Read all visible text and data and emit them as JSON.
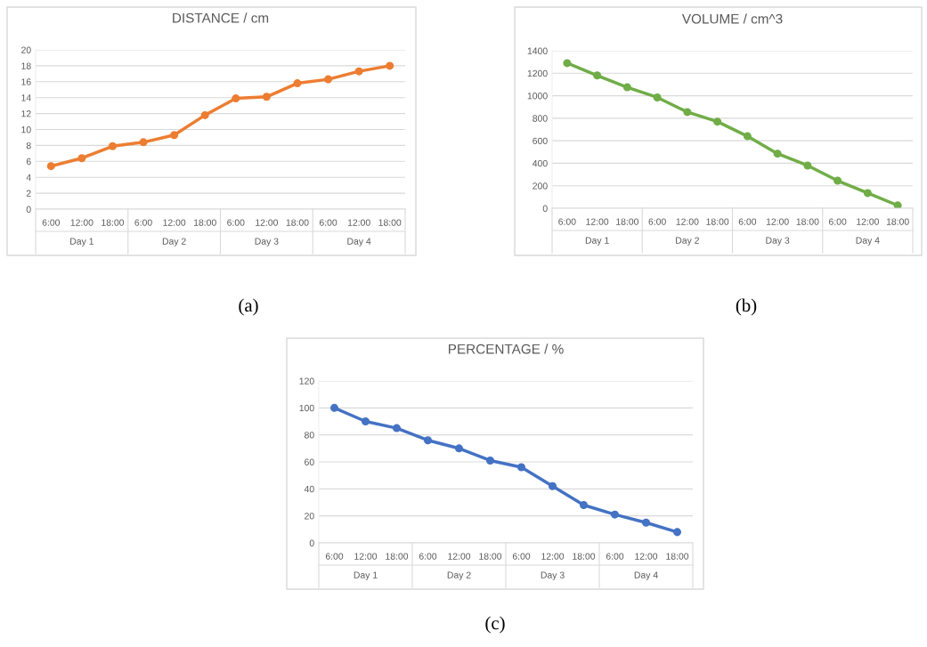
{
  "chart_data": [
    {
      "type": "line",
      "title": "DISTANCE / cm",
      "categories": [
        "6:00",
        "12:00",
        "18:00",
        "6:00",
        "12:00",
        "18:00",
        "6:00",
        "12:00",
        "18:00",
        "6:00",
        "12:00",
        "18:00"
      ],
      "series": [
        {
          "color": "#ed7d31",
          "values": [
            5.4,
            6.4,
            7.9,
            8.4,
            9.3,
            11.8,
            13.9,
            14.1,
            15.8,
            16.3,
            17.3,
            18.0
          ]
        }
      ],
      "ylim": [
        0,
        20
      ],
      "yticks": [
        0,
        2,
        4,
        6,
        8,
        10,
        12,
        14,
        16,
        18,
        20
      ],
      "grid": "y",
      "marker": "circle",
      "line_style": "solid",
      "annotations": [
        "Day 1",
        "Day 2",
        "Day 3",
        "Day 4",
        "(a)"
      ]
    },
    {
      "type": "line",
      "title": "VOLUME / cm^3",
      "categories": [
        "6:00",
        "12:00",
        "18:00",
        "6:00",
        "12:00",
        "18:00",
        "6:00",
        "12:00",
        "18:00",
        "6:00",
        "12:00",
        "18:00"
      ],
      "series": [
        {
          "color": "#70ad47",
          "values": [
            1290,
            1180,
            1075,
            985,
            855,
            770,
            640,
            485,
            380,
            245,
            135,
            25
          ]
        }
      ],
      "ylim": [
        0,
        1400
      ],
      "yticks": [
        0,
        200,
        400,
        600,
        800,
        1000,
        1200,
        1400
      ],
      "grid": "y",
      "marker": "circle",
      "line_style": "solid",
      "annotations": [
        "Day 1",
        "Day 2",
        "Day 3",
        "Day 4",
        "(b)"
      ]
    },
    {
      "type": "line",
      "title": "PERCENTAGE / %",
      "categories": [
        "6:00",
        "12:00",
        "18:00",
        "6:00",
        "12:00",
        "18:00",
        "6:00",
        "12:00",
        "18:00",
        "6:00",
        "12:00",
        "18:00"
      ],
      "series": [
        {
          "color": "#4472c4",
          "values": [
            100,
            90,
            85,
            76,
            70,
            61,
            56,
            42,
            28,
            21,
            15,
            8
          ]
        }
      ],
      "ylim": [
        0,
        120
      ],
      "yticks": [
        0,
        20,
        40,
        60,
        80,
        100,
        120
      ],
      "grid": "y",
      "marker": "circle",
      "line_style": "solid",
      "annotations": [
        "Day 1",
        "Day 2",
        "Day 3",
        "Day 4",
        "(c)"
      ]
    }
  ]
}
